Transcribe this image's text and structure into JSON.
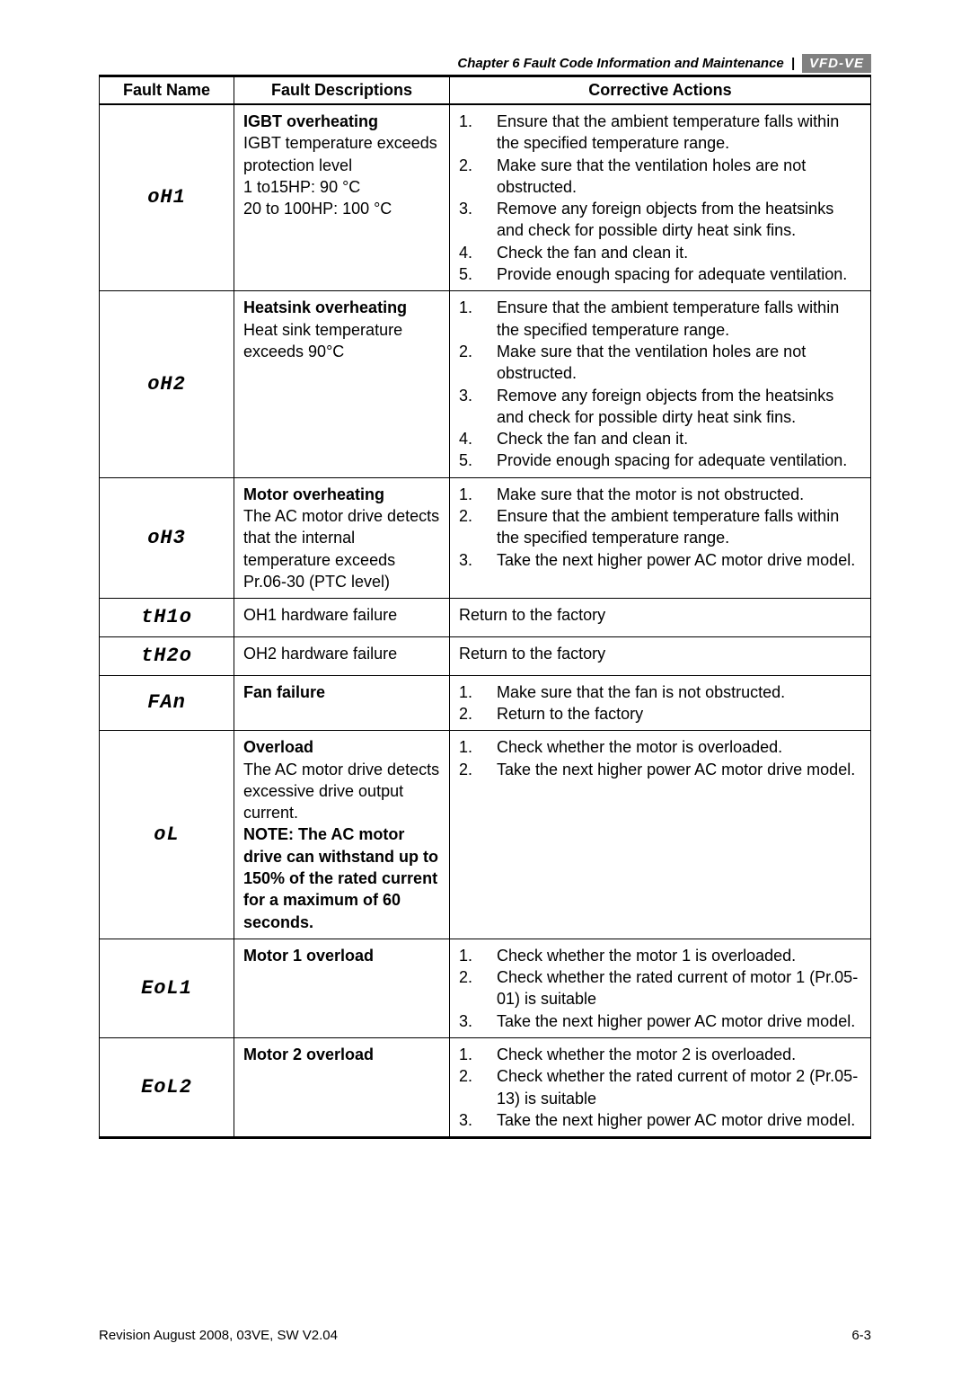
{
  "header": {
    "chapter_text": "Chapter 6 Fault Code Information and Maintenance",
    "badge": "VFD-VE"
  },
  "table": {
    "columns": [
      "Fault Name",
      "Fault Descriptions",
      "Corrective Actions"
    ],
    "rows": [
      {
        "code": "oH1",
        "desc_title": "IGBT overheating",
        "desc_lines": [
          "IGBT temperature exceeds protection level",
          "1 to15HP: 90 °C",
          "20 to 100HP: 100 °C"
        ],
        "actions": [
          "Ensure that the ambient temperature falls within the specified temperature range.",
          "Make sure that the ventilation holes are not obstructed.",
          "Remove any foreign objects from the heatsinks and check for possible dirty heat sink fins.",
          "Check the fan and clean it.",
          "Provide enough spacing for adequate ventilation."
        ]
      },
      {
        "code": "oH2",
        "desc_title": "Heatsink overheating",
        "desc_lines": [
          "Heat sink temperature exceeds 90°C"
        ],
        "actions": [
          "Ensure that the ambient temperature falls within the specified temperature range.",
          "Make sure that the ventilation holes are not obstructed.",
          "Remove any foreign objects from the heatsinks and check for possible dirty heat sink fins.",
          "Check the fan and clean it.",
          "Provide enough spacing for adequate ventilation."
        ]
      },
      {
        "code": "oH3",
        "desc_title": "Motor overheating",
        "desc_lines": [
          "The AC motor drive detects that the internal temperature exceeds Pr.06-30 (PTC level)"
        ],
        "actions": [
          "Make sure that the motor is not obstructed.",
          "Ensure that the ambient temperature falls within the specified temperature range.",
          "Take the next higher power AC motor drive model."
        ]
      },
      {
        "code": "tH1o",
        "desc_plain": "OH1 hardware failure",
        "actions_plain": "Return to the factory"
      },
      {
        "code": "tH2o",
        "desc_plain": "OH2 hardware failure",
        "actions_plain": "Return to the factory"
      },
      {
        "code": "FAn",
        "desc_title": "Fan failure",
        "desc_lines": [],
        "actions": [
          "Make sure that the fan is not obstructed.",
          "Return to the factory"
        ]
      },
      {
        "code": "oL",
        "desc_title": "Overload",
        "desc_lines": [
          "The AC motor drive detects excessive drive output current."
        ],
        "desc_bold_extra": "NOTE: The AC motor drive can withstand up to 150% of the rated current for a maximum of 60 seconds.",
        "actions": [
          "Check whether the motor is overloaded.",
          "Take the next higher power AC motor drive model."
        ]
      },
      {
        "code": "EoL1",
        "desc_title": "Motor 1 overload",
        "desc_lines": [],
        "actions": [
          "Check whether the motor 1 is overloaded.",
          "Check whether the rated current of motor 1 (Pr.05-01) is suitable",
          "Take the next higher power AC motor drive model."
        ]
      },
      {
        "code": "EoL2",
        "desc_title": "Motor 2 overload",
        "desc_lines": [],
        "actions": [
          "Check whether the motor 2 is overloaded.",
          "Check whether the rated current of motor 2 (Pr.05-13) is suitable",
          "Take the next higher power AC motor drive model."
        ]
      }
    ]
  },
  "footer": {
    "left": "Revision August 2008, 03VE, SW V2.04",
    "right": "6-3"
  }
}
